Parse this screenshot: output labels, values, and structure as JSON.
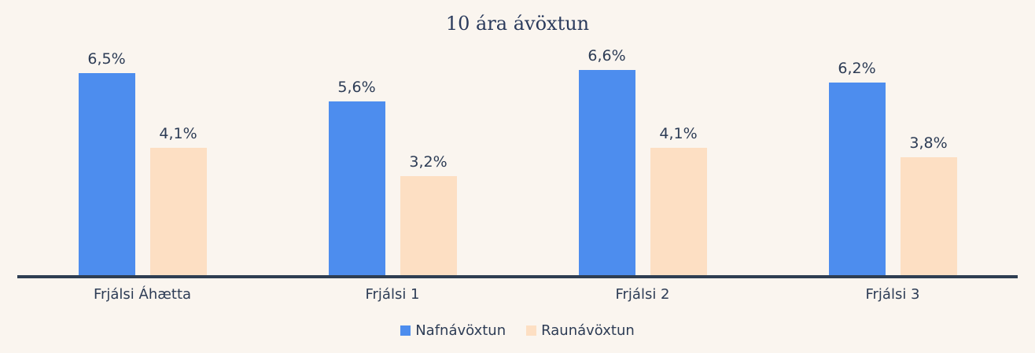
{
  "page": {
    "background_color": "#FAF5EF",
    "text_color": "#2D3C55",
    "axis_color": "#2E3E52"
  },
  "chart_data": {
    "type": "bar",
    "title": "10 ára ávöxtun",
    "categories": [
      "Frjálsi Áhætta",
      "Frjálsi 1",
      "Frjálsi 2",
      "Frjálsi 3"
    ],
    "series": [
      {
        "name": "Nafnávöxtun",
        "color": "#4D8DEE",
        "values": [
          6.5,
          5.6,
          6.6,
          6.2
        ],
        "labels": [
          "6,5%",
          "5,6%",
          "6,6%",
          "6,2%"
        ]
      },
      {
        "name": "Raunávöxtun",
        "color": "#FDDFC3",
        "values": [
          4.1,
          3.2,
          4.1,
          3.8
        ],
        "labels": [
          "4,1%",
          "3,2%",
          "4,1%",
          "3,8%"
        ]
      }
    ],
    "ylim": [
      0,
      6.6
    ],
    "value_suffix": "%",
    "decimal_separator": ",",
    "grid": false,
    "y_axis_visible": false,
    "legend_position": "bottom"
  }
}
